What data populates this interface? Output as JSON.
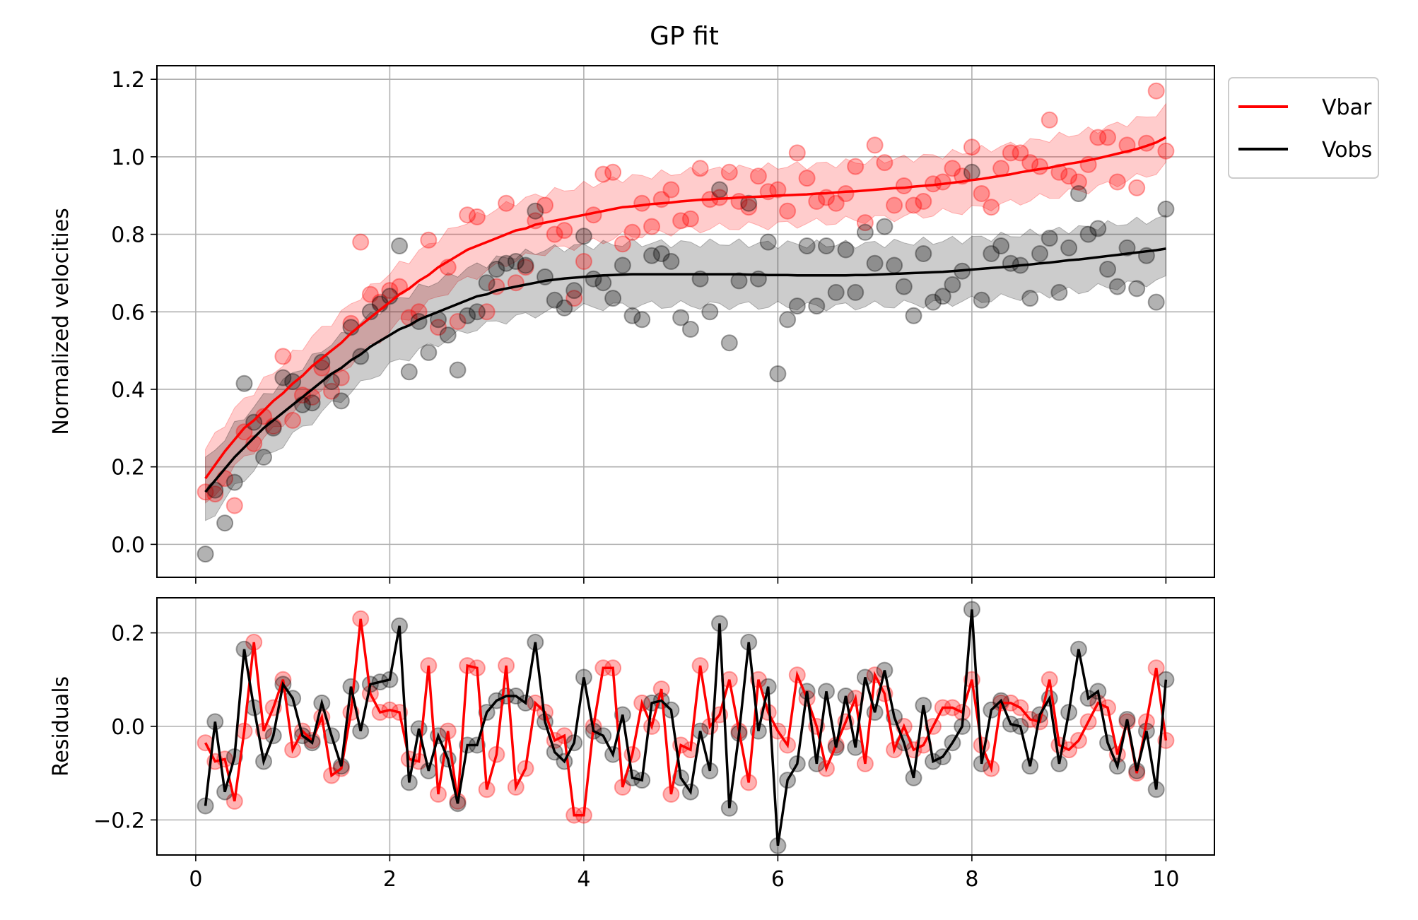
{
  "chart_data": [
    {
      "type": "scatter",
      "title": "GP fit",
      "xlabel": "",
      "ylabel": "Normalized velocities",
      "xlim": [
        -0.4,
        10.5
      ],
      "ylim": [
        -0.085,
        1.235
      ],
      "xticks": [
        0,
        2,
        4,
        6,
        8,
        10
      ],
      "xtick_labels": [
        "0",
        "2",
        "4",
        "6",
        "8",
        "10"
      ],
      "yticks": [
        0.0,
        0.2,
        0.4,
        0.6,
        0.8,
        1.0,
        1.2
      ],
      "ytick_labels": [
        "0.0",
        "0.2",
        "0.4",
        "0.6",
        "0.8",
        "1.0",
        "1.2"
      ],
      "grid": true,
      "legend": {
        "placement": "outside-top-right",
        "entries": [
          "Vbar",
          "Vobs"
        ]
      },
      "x": [
        0.1,
        0.2,
        0.3,
        0.4,
        0.5,
        0.6,
        0.7,
        0.8,
        0.9,
        1.0,
        1.1,
        1.2,
        1.3,
        1.4,
        1.5,
        1.6,
        1.7,
        1.8,
        1.9,
        2.0,
        2.1,
        2.2,
        2.3,
        2.4,
        2.5,
        2.6,
        2.7,
        2.8,
        2.9,
        3.0,
        3.1,
        3.2,
        3.3,
        3.4,
        3.5,
        3.6,
        3.7,
        3.8,
        3.9,
        4.0,
        4.1,
        4.2,
        4.3,
        4.4,
        4.5,
        4.6,
        4.7,
        4.8,
        4.9,
        5.0,
        5.1,
        5.2,
        5.3,
        5.4,
        5.5,
        5.6,
        5.7,
        5.8,
        5.9,
        6.0,
        6.1,
        6.2,
        6.3,
        6.4,
        6.5,
        6.6,
        6.7,
        6.8,
        6.9,
        7.0,
        7.1,
        7.2,
        7.3,
        7.4,
        7.5,
        7.6,
        7.7,
        7.8,
        7.9,
        8.0,
        8.1,
        8.2,
        8.3,
        8.4,
        8.5,
        8.6,
        8.7,
        8.8,
        8.9,
        9.0,
        9.1,
        9.2,
        9.3,
        9.4,
        9.5,
        9.6,
        9.7,
        9.8,
        9.9,
        10.0
      ],
      "series": [
        {
          "name": "Vbar",
          "color": "#ff0000",
          "fit": [
            0.17,
            0.205,
            0.24,
            0.27,
            0.3,
            0.32,
            0.345,
            0.37,
            0.39,
            0.415,
            0.435,
            0.46,
            0.48,
            0.5,
            0.52,
            0.545,
            0.565,
            0.585,
            0.605,
            0.625,
            0.645,
            0.66,
            0.68,
            0.695,
            0.715,
            0.73,
            0.745,
            0.76,
            0.77,
            0.78,
            0.79,
            0.8,
            0.81,
            0.815,
            0.825,
            0.83,
            0.835,
            0.84,
            0.845,
            0.85,
            0.855,
            0.86,
            0.865,
            0.87,
            0.872,
            0.875,
            0.878,
            0.88,
            0.882,
            0.885,
            0.887,
            0.889,
            0.89,
            0.892,
            0.893,
            0.895,
            0.896,
            0.897,
            0.898,
            0.9,
            0.901,
            0.902,
            0.903,
            0.905,
            0.906,
            0.908,
            0.91,
            0.911,
            0.913,
            0.915,
            0.917,
            0.919,
            0.92,
            0.923,
            0.925,
            0.927,
            0.93,
            0.933,
            0.936,
            0.94,
            0.943,
            0.947,
            0.951,
            0.955,
            0.96,
            0.964,
            0.968,
            0.972,
            0.977,
            0.982,
            0.986,
            0.991,
            0.996,
            1.002,
            1.008,
            1.014,
            1.02,
            1.028,
            1.037,
            1.05
          ],
          "band_halfwidth": 0.075,
          "obs": [
            0.135,
            0.13,
            0.17,
            0.1,
            0.29,
            0.26,
            0.33,
            0.305,
            0.485,
            0.32,
            0.385,
            0.38,
            0.455,
            0.395,
            0.43,
            0.57,
            0.78,
            0.645,
            0.625,
            0.655,
            0.665,
            0.585,
            0.6,
            0.785,
            0.56,
            0.715,
            0.575,
            0.85,
            0.845,
            0.6,
            0.665,
            0.88,
            0.675,
            0.715,
            0.835,
            0.875,
            0.8,
            0.81,
            0.635,
            0.73,
            0.85,
            0.955,
            0.96,
            0.775,
            0.805,
            0.88,
            0.82,
            0.89,
            0.915,
            0.835,
            0.84,
            0.97,
            0.89,
            0.895,
            0.96,
            0.885,
            0.87,
            0.95,
            0.91,
            0.915,
            0.86,
            1.01,
            0.945,
            0.885,
            0.895,
            0.88,
            0.905,
            0.975,
            0.83,
            1.03,
            0.985,
            0.875,
            0.925,
            0.875,
            0.885,
            0.93,
            0.935,
            0.97,
            0.95,
            1.025,
            0.905,
            0.87,
            0.97,
            1.01,
            1.01,
            0.985,
            0.975,
            1.095,
            0.96,
            0.95,
            0.935,
            0.98,
            1.05,
            1.05,
            0.935,
            1.03,
            0.92,
            1.035,
            1.17,
            1.015
          ],
          "residuals": [
            -0.035,
            -0.075,
            -0.07,
            -0.16,
            -0.01,
            0.18,
            -0.01,
            0.04,
            0.1,
            -0.05,
            -0.01,
            -0.03,
            0.02,
            -0.105,
            -0.09,
            0.03,
            0.23,
            0.07,
            0.03,
            0.035,
            0.03,
            -0.07,
            -0.075,
            0.13,
            -0.145,
            -0.01,
            -0.16,
            0.13,
            0.125,
            -0.135,
            -0.06,
            0.13,
            -0.13,
            -0.09,
            0.05,
            0.03,
            -0.03,
            -0.02,
            -0.19,
            -0.19,
            0.0,
            0.125,
            0.125,
            -0.13,
            -0.06,
            0.05,
            0.0,
            0.08,
            -0.145,
            -0.04,
            -0.05,
            0.13,
            0.0,
            0.025,
            0.1,
            -0.01,
            -0.12,
            0.1,
            0.03,
            -0.01,
            -0.04,
            0.11,
            0.06,
            0.0,
            -0.09,
            -0.04,
            0.01,
            0.06,
            -0.08,
            0.11,
            0.07,
            -0.05,
            0.0,
            -0.05,
            -0.04,
            0.0,
            0.04,
            0.04,
            0.03,
            0.1,
            -0.04,
            -0.09,
            0.05,
            0.05,
            0.04,
            0.015,
            0.01,
            0.1,
            -0.04,
            -0.05,
            -0.03,
            0.01,
            0.05,
            0.04,
            -0.06,
            0.01,
            -0.1,
            0.01,
            0.125,
            -0.03
          ]
        },
        {
          "name": "Vobs",
          "color": "#000000",
          "fit": [
            0.135,
            0.165,
            0.195,
            0.225,
            0.25,
            0.275,
            0.3,
            0.32,
            0.34,
            0.36,
            0.38,
            0.4,
            0.42,
            0.44,
            0.455,
            0.475,
            0.49,
            0.51,
            0.525,
            0.54,
            0.555,
            0.565,
            0.58,
            0.59,
            0.6,
            0.61,
            0.62,
            0.63,
            0.64,
            0.645,
            0.655,
            0.66,
            0.665,
            0.67,
            0.675,
            0.68,
            0.683,
            0.686,
            0.688,
            0.69,
            0.692,
            0.694,
            0.695,
            0.696,
            0.697,
            0.697,
            0.697,
            0.697,
            0.697,
            0.697,
            0.697,
            0.697,
            0.697,
            0.697,
            0.697,
            0.697,
            0.696,
            0.696,
            0.695,
            0.695,
            0.695,
            0.694,
            0.694,
            0.694,
            0.694,
            0.694,
            0.694,
            0.695,
            0.695,
            0.696,
            0.697,
            0.698,
            0.699,
            0.7,
            0.701,
            0.702,
            0.703,
            0.705,
            0.707,
            0.709,
            0.711,
            0.713,
            0.715,
            0.717,
            0.72,
            0.722,
            0.725,
            0.727,
            0.73,
            0.733,
            0.735,
            0.738,
            0.741,
            0.744,
            0.747,
            0.75,
            0.753,
            0.756,
            0.759,
            0.763
          ],
          "band_halfwidth": 0.08,
          "obs": [
            -0.025,
            0.14,
            0.055,
            0.16,
            0.415,
            0.315,
            0.225,
            0.3,
            0.43,
            0.42,
            0.36,
            0.365,
            0.47,
            0.42,
            0.37,
            0.56,
            0.485,
            0.6,
            0.62,
            0.64,
            0.77,
            0.445,
            0.575,
            0.495,
            0.58,
            0.54,
            0.45,
            0.59,
            0.6,
            0.675,
            0.71,
            0.725,
            0.73,
            0.72,
            0.86,
            0.69,
            0.63,
            0.61,
            0.655,
            0.795,
            0.685,
            0.675,
            0.635,
            0.72,
            0.59,
            0.58,
            0.745,
            0.75,
            0.73,
            0.585,
            0.555,
            0.685,
            0.6,
            0.915,
            0.52,
            0.68,
            0.88,
            0.685,
            0.78,
            0.44,
            0.58,
            0.615,
            0.77,
            0.615,
            0.77,
            0.65,
            0.76,
            0.65,
            0.805,
            0.725,
            0.82,
            0.72,
            0.665,
            0.59,
            0.75,
            0.625,
            0.64,
            0.67,
            0.705,
            0.96,
            0.63,
            0.75,
            0.77,
            0.725,
            0.72,
            0.635,
            0.75,
            0.79,
            0.65,
            0.765,
            0.905,
            0.8,
            0.815,
            0.71,
            0.665,
            0.765,
            0.66,
            0.745,
            0.625,
            0.865
          ],
          "residuals": [
            -0.17,
            0.01,
            -0.14,
            -0.065,
            0.165,
            0.04,
            -0.075,
            -0.02,
            0.09,
            0.06,
            -0.02,
            -0.035,
            0.05,
            -0.02,
            -0.085,
            0.085,
            -0.01,
            0.09,
            0.095,
            0.1,
            0.215,
            -0.12,
            -0.005,
            -0.095,
            -0.02,
            -0.07,
            -0.165,
            -0.04,
            -0.04,
            0.03,
            0.055,
            0.065,
            0.065,
            0.05,
            0.18,
            0.01,
            -0.055,
            -0.075,
            -0.035,
            0.105,
            -0.01,
            -0.02,
            -0.06,
            0.025,
            -0.11,
            -0.115,
            0.05,
            0.055,
            0.035,
            -0.11,
            -0.14,
            -0.01,
            -0.095,
            0.22,
            -0.175,
            -0.015,
            0.18,
            -0.01,
            0.085,
            -0.255,
            -0.115,
            -0.08,
            0.075,
            -0.08,
            0.075,
            -0.045,
            0.065,
            -0.045,
            0.105,
            0.03,
            0.12,
            0.02,
            -0.035,
            -0.11,
            0.045,
            -0.075,
            -0.065,
            -0.035,
            0.0,
            0.25,
            -0.08,
            0.035,
            0.055,
            0.005,
            0.0,
            -0.085,
            0.025,
            0.06,
            -0.08,
            0.03,
            0.165,
            0.06,
            0.075,
            -0.035,
            -0.085,
            0.015,
            -0.095,
            -0.01,
            -0.135,
            0.1
          ]
        }
      ]
    },
    {
      "type": "line",
      "title": "",
      "xlabel": "",
      "ylabel": "Residuals",
      "xlim": [
        -0.4,
        10.5
      ],
      "ylim": [
        -0.275,
        0.275
      ],
      "xticks": [
        0,
        2,
        4,
        6,
        8,
        10
      ],
      "xtick_labels": [
        "0",
        "2",
        "4",
        "6",
        "8",
        "10"
      ],
      "yticks": [
        -0.2,
        0.0,
        0.2
      ],
      "ytick_labels": [
        "−0.2",
        "0.0",
        "0.2"
      ],
      "grid": true
    }
  ]
}
